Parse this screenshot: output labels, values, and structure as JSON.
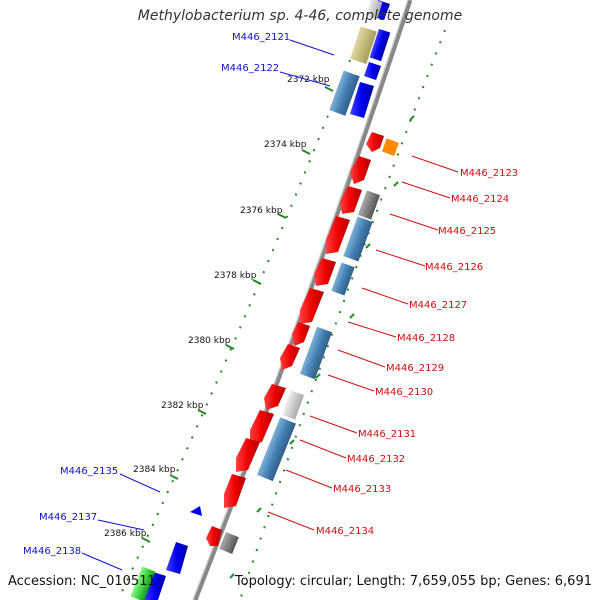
{
  "header": {
    "title": "Methylobacterium sp. 4-46, complete genome"
  },
  "footer": {
    "accession": "Accession: NC_010511",
    "summary": "Topology: circular; Length: 7,659,055 bp; Genes: 6,691"
  },
  "colors": {
    "backbone": "#888888",
    "forward_gene": "#0000ee",
    "reverse_gene": "#ee0000",
    "cds_blue": "#4682b4",
    "cds_gray": "#cccccc",
    "tick_green": "#228b22",
    "label_blue": "#1010cc",
    "label_red": "#cc1010"
  },
  "scale_ticks": [
    {
      "label": "2372 kbp"
    },
    {
      "label": "2374 kbp"
    },
    {
      "label": "2376 kbp"
    },
    {
      "label": "2378 kbp"
    },
    {
      "label": "2380 kbp"
    },
    {
      "label": "2382 kbp"
    },
    {
      "label": "2384 kbp"
    },
    {
      "label": "2386 kbp"
    }
  ],
  "gene_labels_forward": [
    {
      "name": "M446_2121"
    },
    {
      "name": "M446_2122"
    },
    {
      "name": "M446_2135"
    },
    {
      "name": "M446_2137"
    },
    {
      "name": "M446_2138"
    }
  ],
  "gene_labels_reverse": [
    {
      "name": "M446_2123"
    },
    {
      "name": "M446_2124"
    },
    {
      "name": "M446_2125"
    },
    {
      "name": "M446_2126"
    },
    {
      "name": "M446_2127"
    },
    {
      "name": "M446_2128"
    },
    {
      "name": "M446_2129"
    },
    {
      "name": "M446_2130"
    },
    {
      "name": "M446_2131"
    },
    {
      "name": "M446_2132"
    },
    {
      "name": "M446_2133"
    },
    {
      "name": "M446_2134"
    }
  ]
}
